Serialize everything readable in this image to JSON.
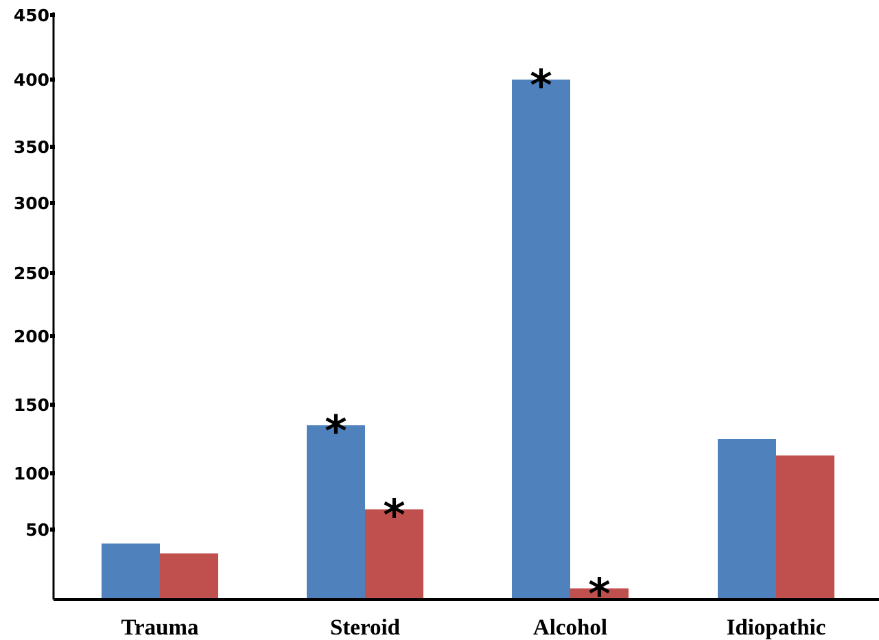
{
  "chart_data": {
    "type": "bar",
    "title": "",
    "xlabel": "",
    "ylabel": "",
    "categories": [
      "Trauma",
      "Steroid",
      "Alcohol",
      "Idiopathic"
    ],
    "series": [
      {
        "color": "#4f81bd",
        "values": [
          40,
          135,
          400,
          125
        ],
        "asterisk": [
          false,
          true,
          true,
          false
        ]
      },
      {
        "color": "#c0504d",
        "values": [
          33,
          68,
          8,
          113
        ],
        "asterisk": [
          false,
          true,
          true,
          false
        ]
      }
    ],
    "yticks": [
      "450",
      "400",
      "350",
      "300",
      "250",
      "200",
      "150",
      "100",
      "50"
    ],
    "ylim": [
      0,
      450
    ],
    "asterisk_symbol": "*",
    "grid": false,
    "legend": "none"
  }
}
